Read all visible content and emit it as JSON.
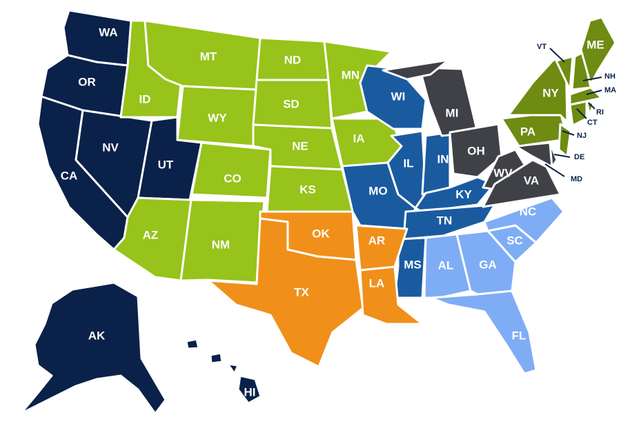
{
  "colors": {
    "west": "#0a2149",
    "plains": "#97c31a",
    "northeast": "#6e8b12",
    "midatlantic": "#3f4146",
    "central": "#1a5ba0",
    "southeast": "#7fadf5",
    "south": "#f0901a"
  },
  "states": [
    {
      "id": "WA",
      "label": "WA",
      "group": "west"
    },
    {
      "id": "OR",
      "label": "OR",
      "group": "west"
    },
    {
      "id": "CA",
      "label": "CA",
      "group": "west"
    },
    {
      "id": "NV",
      "label": "NV",
      "group": "west"
    },
    {
      "id": "UT",
      "label": "UT",
      "group": "west"
    },
    {
      "id": "AK",
      "label": "AK",
      "group": "west"
    },
    {
      "id": "HI",
      "label": "HI",
      "group": "west"
    },
    {
      "id": "ID",
      "label": "ID",
      "group": "plains"
    },
    {
      "id": "MT",
      "label": "MT",
      "group": "plains"
    },
    {
      "id": "WY",
      "label": "WY",
      "group": "plains"
    },
    {
      "id": "CO",
      "label": "CO",
      "group": "plains"
    },
    {
      "id": "AZ",
      "label": "AZ",
      "group": "plains"
    },
    {
      "id": "NM",
      "label": "NM",
      "group": "plains"
    },
    {
      "id": "ND",
      "label": "ND",
      "group": "plains"
    },
    {
      "id": "SD",
      "label": "SD",
      "group": "plains"
    },
    {
      "id": "NE",
      "label": "NE",
      "group": "plains"
    },
    {
      "id": "KS",
      "label": "KS",
      "group": "plains"
    },
    {
      "id": "MN",
      "label": "MN",
      "group": "plains"
    },
    {
      "id": "IA",
      "label": "IA",
      "group": "plains"
    },
    {
      "id": "WI",
      "label": "WI",
      "group": "central"
    },
    {
      "id": "IL",
      "label": "IL",
      "group": "central"
    },
    {
      "id": "IN",
      "label": "IN",
      "group": "central"
    },
    {
      "id": "MO",
      "label": "MO",
      "group": "central"
    },
    {
      "id": "KY",
      "label": "KY",
      "group": "central"
    },
    {
      "id": "TN",
      "label": "TN",
      "group": "central"
    },
    {
      "id": "MS",
      "label": "MS",
      "group": "central"
    },
    {
      "id": "MI",
      "label": "MI",
      "group": "midatlantic"
    },
    {
      "id": "OH",
      "label": "OH",
      "group": "midatlantic"
    },
    {
      "id": "WV",
      "label": "WV",
      "group": "midatlantic"
    },
    {
      "id": "VA",
      "label": "VA",
      "group": "midatlantic"
    },
    {
      "id": "MD",
      "label": "MD",
      "group": "midatlantic"
    },
    {
      "id": "DE",
      "label": "DE",
      "group": "midatlantic"
    },
    {
      "id": "OK",
      "label": "OK",
      "group": "south"
    },
    {
      "id": "TX",
      "label": "TX",
      "group": "south"
    },
    {
      "id": "AR",
      "label": "AR",
      "group": "south"
    },
    {
      "id": "LA",
      "label": "LA",
      "group": "south"
    },
    {
      "id": "AL",
      "label": "AL",
      "group": "southeast"
    },
    {
      "id": "GA",
      "label": "GA",
      "group": "southeast"
    },
    {
      "id": "FL",
      "label": "FL",
      "group": "southeast"
    },
    {
      "id": "SC",
      "label": "SC",
      "group": "southeast"
    },
    {
      "id": "NC",
      "label": "NC",
      "group": "southeast"
    },
    {
      "id": "PA",
      "label": "PA",
      "group": "northeast"
    },
    {
      "id": "NY",
      "label": "NY",
      "group": "northeast"
    },
    {
      "id": "NJ",
      "label": "NJ",
      "group": "northeast"
    },
    {
      "id": "VT",
      "label": "VT",
      "group": "northeast"
    },
    {
      "id": "NH",
      "label": "NH",
      "group": "northeast"
    },
    {
      "id": "MA",
      "label": "MA",
      "group": "northeast"
    },
    {
      "id": "CT",
      "label": "CT",
      "group": "northeast"
    },
    {
      "id": "RI",
      "label": "RI",
      "group": "northeast"
    },
    {
      "id": "ME",
      "label": "ME",
      "group": "northeast"
    }
  ]
}
